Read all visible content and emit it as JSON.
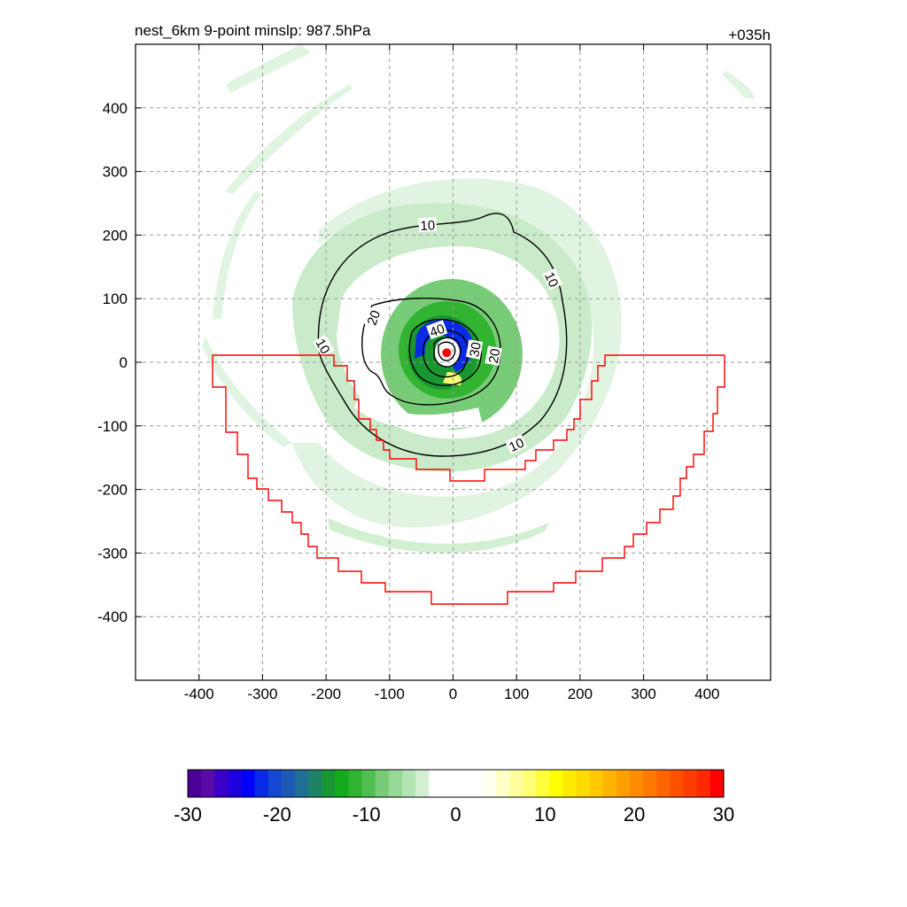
{
  "chart_data": {
    "type": "contour",
    "title_left": "nest_6km  9-point minslp: 987.5hPa",
    "title_right": "+035h",
    "xlim": [
      -500,
      500
    ],
    "ylim": [
      -500,
      500
    ],
    "x_ticks": [
      -400,
      -300,
      -200,
      -100,
      0,
      100,
      200,
      300,
      400
    ],
    "y_ticks": [
      400,
      300,
      200,
      100,
      0,
      -100,
      -200,
      -300,
      -400
    ],
    "grid": true,
    "center_marker": {
      "x": -10,
      "y": 15,
      "color": "#ff0000"
    },
    "contour_labels": [
      {
        "text": "10",
        "x": -40,
        "y": 215,
        "angle": -3
      },
      {
        "text": "10",
        "x": 155,
        "y": 130,
        "angle": 65
      },
      {
        "text": "10",
        "x": -205,
        "y": 25,
        "angle": 60
      },
      {
        "text": "10",
        "x": 100,
        "y": -130,
        "angle": -25
      },
      {
        "text": "20",
        "x": -125,
        "y": 70,
        "angle": -70
      },
      {
        "text": "20",
        "x": 65,
        "y": 10,
        "angle": -80
      },
      {
        "text": "40",
        "x": -25,
        "y": 50,
        "angle": -20
      },
      {
        "text": "30",
        "x": 35,
        "y": 20,
        "angle": -80
      }
    ],
    "colorbar": {
      "min": -30,
      "max": 30,
      "ticks": [
        -30,
        -20,
        -10,
        0,
        10,
        20,
        30
      ],
      "colors": [
        "#4b0096",
        "#5a0aa8",
        "#3a00c8",
        "#1e00dc",
        "#0000ff",
        "#0a2ae6",
        "#1448d2",
        "#1e5ab4",
        "#1e6e96",
        "#1e8264",
        "#189632",
        "#14aa1e",
        "#32b432",
        "#50be50",
        "#78cc78",
        "#96d896",
        "#b4e4b4",
        "#d2efd2",
        "#ffffff",
        "#ffffff",
        "#ffffff",
        "#ffffff",
        "#fffff0",
        "#ffffc8",
        "#ffffa0",
        "#ffff78",
        "#ffff3c",
        "#ffff00",
        "#ffeb00",
        "#ffdc00",
        "#ffc800",
        "#ffb400",
        "#ffa000",
        "#ff8c00",
        "#ff7800",
        "#ff6400",
        "#ff5000",
        "#ff3c00",
        "#ff2800",
        "#ff0000"
      ]
    }
  }
}
